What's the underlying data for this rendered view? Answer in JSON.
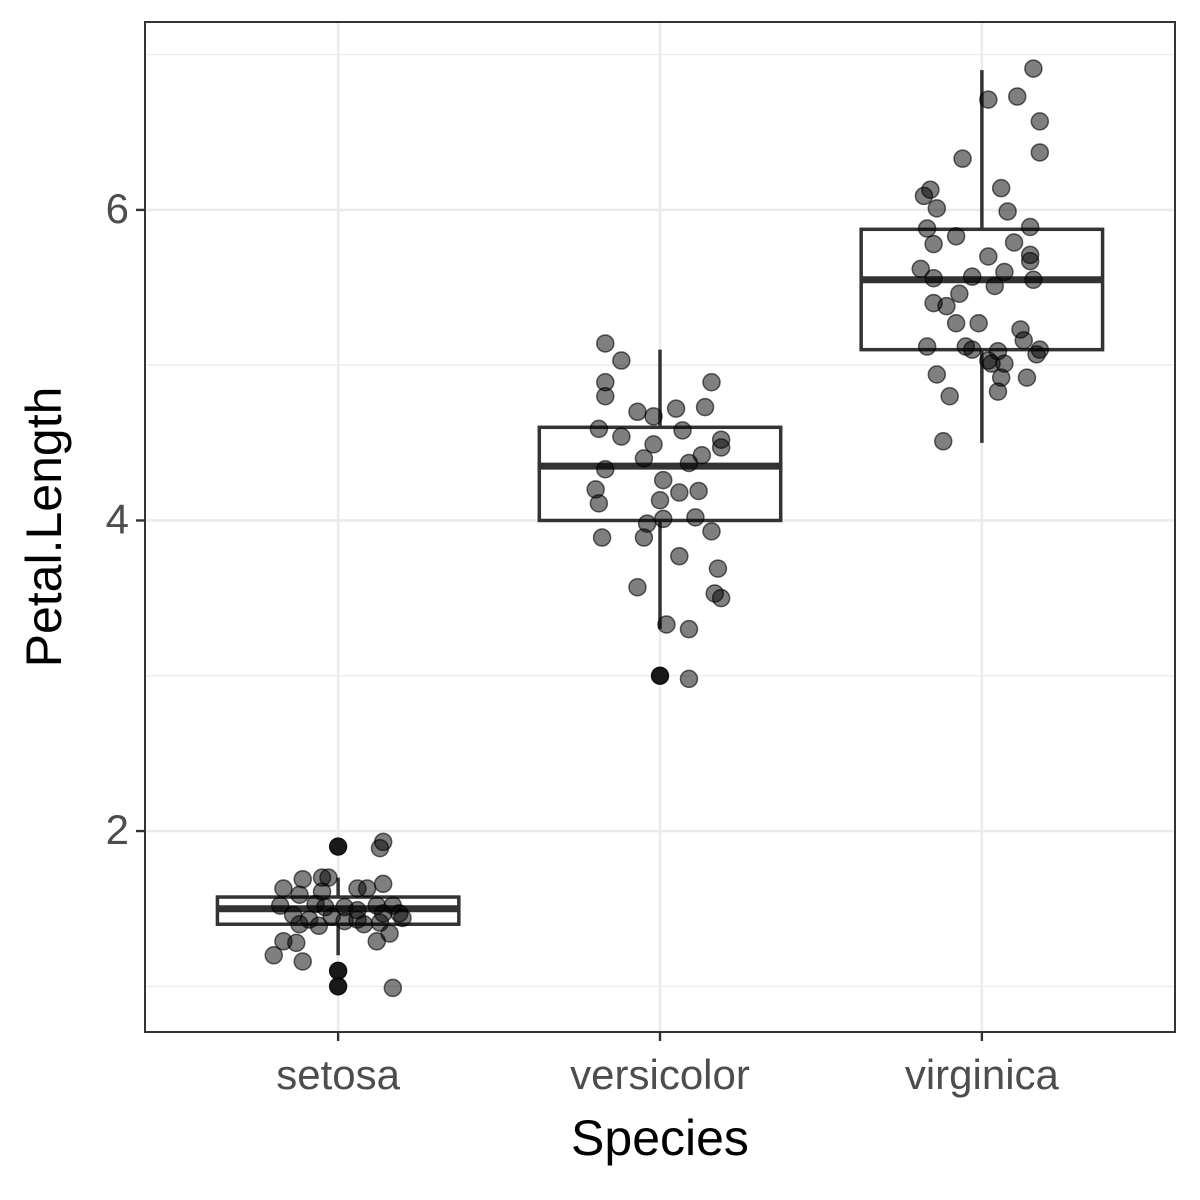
{
  "chart_data": {
    "type": "box",
    "xlabel": "Species",
    "ylabel": "Petal.Length",
    "categories": [
      "setosa",
      "versicolor",
      "virginica"
    ],
    "ylim": [
      0.706,
      7.21
    ],
    "yticks": [
      2,
      4,
      6
    ],
    "minor_yticks": [
      1,
      3,
      5,
      7
    ],
    "grid": true,
    "whisker_low": [
      1.2,
      3.3,
      4.5
    ],
    "q1": [
      1.4,
      4.0,
      5.1
    ],
    "median": [
      1.5,
      4.35,
      5.55
    ],
    "q3": [
      1.575,
      4.6,
      5.875
    ],
    "whisker_high": [
      1.7,
      5.1,
      6.9
    ],
    "outliers": [
      [
        1.9,
        1.1,
        1.1,
        1.0
      ],
      [
        3.0
      ],
      []
    ],
    "box_color": "#333333",
    "point_color": "#000000",
    "points": [
      {
        "offset": [
          0.0,
          0.14,
          0.13,
          -0.05,
          -0.11,
          -0.03,
          0.14,
          -0.17,
          0.06,
          0.09,
          -0.05,
          -0.12,
          -0.18,
          -0.07,
          -0.04,
          0.02,
          0.06,
          0.12,
          0.17,
          0.19,
          -0.14,
          -0.09,
          -0.02,
          0.06,
          0.14,
          0.2,
          -0.12,
          -0.06,
          0.02,
          0.08,
          0.13,
          0.16,
          0.12,
          -0.17,
          -0.13,
          -0.2,
          -0.11,
          0.0,
          0.0,
          0.17
        ],
        "values": [
          1.9,
          1.93,
          1.89,
          1.7,
          1.69,
          1.7,
          1.66,
          1.63,
          1.63,
          1.63,
          1.61,
          1.59,
          1.52,
          1.53,
          1.51,
          1.51,
          1.49,
          1.52,
          1.52,
          1.47,
          1.46,
          1.43,
          1.45,
          1.43,
          1.47,
          1.44,
          1.4,
          1.39,
          1.42,
          1.4,
          1.41,
          1.34,
          1.29,
          1.29,
          1.28,
          1.2,
          1.16,
          1.1,
          1.0,
          0.99
        ]
      },
      {
        "offset": [
          -0.17,
          -0.12,
          -0.17,
          0.16,
          -0.17,
          -0.07,
          0.05,
          -0.02,
          0.14,
          -0.19,
          -0.12,
          0.07,
          0.19,
          0.19,
          -0.02,
          -0.05,
          0.13,
          0.09,
          -0.17,
          0.01,
          -0.2,
          0.06,
          0.12,
          -0.19,
          0.0,
          0.11,
          0.01,
          -0.04,
          0.16,
          -0.18,
          -0.05,
          0.06,
          0.18,
          -0.07,
          0.17,
          0.19,
          0.02,
          0.09,
          0.0,
          0.09
        ],
        "values": [
          5.14,
          5.03,
          4.89,
          4.89,
          4.8,
          4.7,
          4.72,
          4.67,
          4.73,
          4.59,
          4.54,
          4.58,
          4.52,
          4.47,
          4.49,
          4.4,
          4.42,
          4.37,
          4.33,
          4.26,
          4.2,
          4.18,
          4.19,
          4.11,
          4.13,
          4.02,
          4.01,
          3.98,
          3.93,
          3.89,
          3.89,
          3.77,
          3.69,
          3.57,
          3.53,
          3.5,
          3.33,
          3.3,
          3.0,
          2.98
        ]
      },
      {
        "offset": [
          0.16,
          0.02,
          0.11,
          0.18,
          0.18,
          -0.06,
          -0.16,
          0.06,
          -0.18,
          -0.14,
          0.08,
          -0.17,
          0.15,
          -0.08,
          -0.15,
          0.1,
          0.02,
          0.15,
          0.15,
          -0.19,
          -0.15,
          -0.03,
          0.07,
          0.16,
          0.04,
          -0.07,
          -0.15,
          -0.11,
          -0.08,
          -0.01,
          0.12,
          0.13,
          -0.17,
          -0.05,
          -0.03,
          0.05,
          0.18,
          0.17,
          0.02,
          0.07,
          0.03,
          0.06,
          0.14,
          -0.14,
          0.05,
          -0.1,
          -0.12
        ],
        "values": [
          6.91,
          6.71,
          6.73,
          6.57,
          6.37,
          6.33,
          6.13,
          6.14,
          6.09,
          6.01,
          5.99,
          5.88,
          5.89,
          5.83,
          5.78,
          5.79,
          5.7,
          5.71,
          5.67,
          5.62,
          5.56,
          5.57,
          5.6,
          5.55,
          5.51,
          5.46,
          5.4,
          5.38,
          5.27,
          5.27,
          5.23,
          5.16,
          5.12,
          5.12,
          5.1,
          5.09,
          5.1,
          5.07,
          5.03,
          5.01,
          5.01,
          4.92,
          4.92,
          4.94,
          4.83,
          4.8,
          4.51
        ]
      }
    ]
  }
}
